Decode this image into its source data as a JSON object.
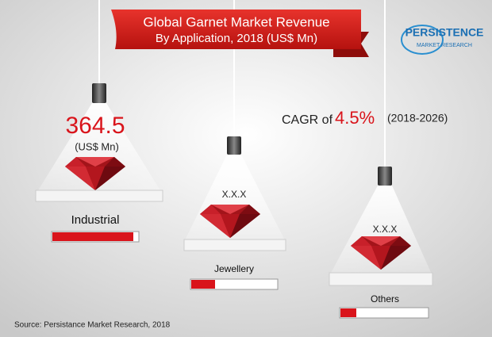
{
  "title": {
    "line1": "Global Garnet Market Revenue",
    "line2": "By Application, 2018 (US$ Mn)"
  },
  "logo": {
    "line1": "PERSISTENCE",
    "line2": "MARKET RESEARCH"
  },
  "cagr": {
    "label": "CAGR of",
    "value": "4.5%",
    "period": "(2018-2026)"
  },
  "segments": [
    {
      "name": "Industrial",
      "value": 364.5,
      "unit": "(US$ Mn)"
    },
    {
      "name": "Jewellery",
      "value": "X.X.X"
    },
    {
      "name": "Others",
      "value": "X.X.X"
    }
  ],
  "source": "Source: Persistance Market Research, 2018"
}
